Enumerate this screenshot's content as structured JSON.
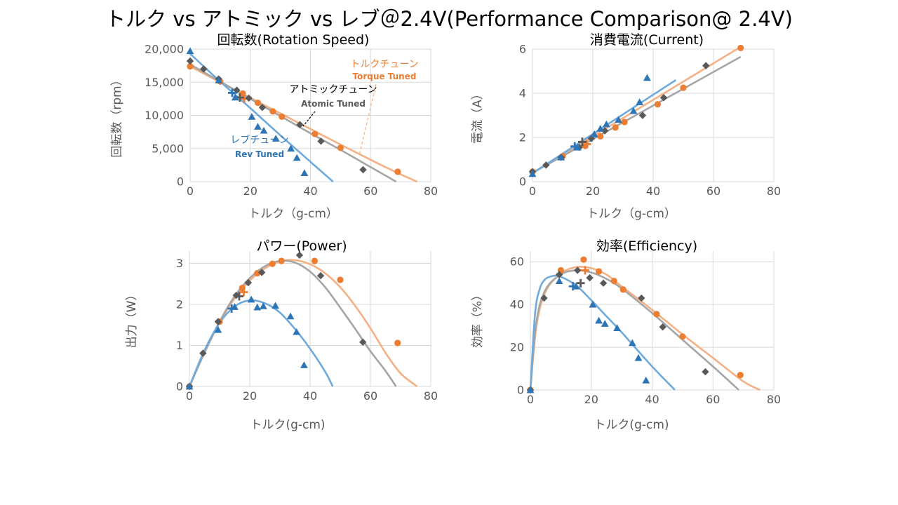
{
  "page": {
    "title": "トルク vs アトミック vs レブ＠2.4V(Performance Comparison@ 2.4V)"
  },
  "colors": {
    "torque": "#ED7D31",
    "torque_fit": "#F4B183",
    "atomic": "#595959",
    "atomic_fit": "#A6A6A6",
    "rev": "#2E75B6",
    "rev_fit": "#6FAADC",
    "grid": "#D9D9D9",
    "axis_text": "#595959"
  },
  "chart_data": [
    {
      "type": "scatter",
      "title": "回転数(Rotation Speed)",
      "xlabel": "トルク（g-cm）",
      "ylabel": "回転数（rpm）",
      "xlim": [
        0,
        80
      ],
      "ylim": [
        0,
        20000
      ],
      "xticks": [
        "0",
        "20",
        "40",
        "60",
        "80"
      ],
      "yticks": [
        "0",
        "5,000",
        "10,000",
        "15,000",
        "20,000"
      ],
      "grid": true,
      "annotations": [
        {
          "ja": "トルクチューン",
          "en": "Torque Tuned",
          "series": "torque"
        },
        {
          "ja": "アトミックチューン",
          "en": "Atomic Tuned",
          "series": "atomic"
        },
        {
          "ja": "レブチューン",
          "en": "Rev Tuned",
          "series": "rev"
        }
      ],
      "series": [
        {
          "key": "torque",
          "marker": "circle",
          "points": [
            [
              0,
              17400
            ],
            [
              10,
              15100
            ],
            [
              17.5,
              13300
            ],
            [
              22.5,
              11900
            ],
            [
              27.5,
              10600
            ],
            [
              30.5,
              9800
            ],
            [
              41.5,
              7200
            ],
            [
              50,
              5100
            ],
            [
              69,
              1500
            ]
          ],
          "op_point": [
            18,
            12500
          ],
          "fit": [
            [
              0,
              17400
            ],
            [
              10,
              15000
            ],
            [
              20,
              12650
            ],
            [
              30,
              10300
            ],
            [
              40,
              7950
            ],
            [
              50,
              5600
            ],
            [
              60,
              3300
            ],
            [
              70,
              1100
            ],
            [
              75.5,
              0
            ]
          ]
        },
        {
          "key": "atomic",
          "marker": "diamond",
          "points": [
            [
              0,
              18200
            ],
            [
              4.5,
              17000
            ],
            [
              9.5,
              15500
            ],
            [
              15.5,
              13800
            ],
            [
              19.5,
              12600
            ],
            [
              24,
              11200
            ],
            [
              36.5,
              8600
            ],
            [
              43.5,
              6100
            ],
            [
              57.5,
              1800
            ]
          ],
          "op_point": [
            16.5,
            12700
          ],
          "fit": [
            [
              0,
              17700
            ],
            [
              10,
              15100
            ],
            [
              20,
              12500
            ],
            [
              30,
              9900
            ],
            [
              40,
              7300
            ],
            [
              50,
              4800
            ],
            [
              60,
              2200
            ],
            [
              68.5,
              0
            ]
          ]
        },
        {
          "key": "rev",
          "marker": "triangle",
          "points": [
            [
              0,
              19700
            ],
            [
              9.5,
              15300
            ],
            [
              15,
              12700
            ],
            [
              20.5,
              9800
            ],
            [
              22.5,
              8300
            ],
            [
              24.5,
              7700
            ],
            [
              28.5,
              6500
            ],
            [
              33.5,
              5000
            ],
            [
              35.5,
              3600
            ],
            [
              38,
              1300
            ]
          ],
          "op_point": [
            14,
            13400
          ],
          "fit": [
            [
              0,
              19300
            ],
            [
              10,
              15100
            ],
            [
              20,
              11100
            ],
            [
              30,
              7000
            ],
            [
              40,
              3000
            ],
            [
              47.5,
              0
            ]
          ]
        }
      ]
    },
    {
      "type": "scatter",
      "title": "消費電流(Current)",
      "xlabel": "トルク（g-cm）",
      "ylabel": "電流（A）",
      "xlim": [
        0,
        80
      ],
      "ylim": [
        0,
        6
      ],
      "xticks": [
        "0",
        "20",
        "40",
        "60",
        "80"
      ],
      "yticks": [
        "0",
        "2",
        "4",
        "6"
      ],
      "grid": true,
      "series": [
        {
          "key": "torque",
          "marker": "circle",
          "points": [
            [
              0,
              0.45
            ],
            [
              10,
              1.15
            ],
            [
              17.5,
              1.62
            ],
            [
              22.5,
              2.05
            ],
            [
              27.5,
              2.45
            ],
            [
              30.5,
              2.7
            ],
            [
              41.5,
              3.5
            ],
            [
              50,
              4.25
            ],
            [
              69,
              6.05
            ]
          ],
          "op_point": [
            18,
            1.7
          ],
          "fit": [
            [
              0,
              0.4
            ],
            [
              69,
              6.1
            ]
          ]
        },
        {
          "key": "atomic",
          "marker": "diamond",
          "points": [
            [
              0,
              0.45
            ],
            [
              4.5,
              0.75
            ],
            [
              9.5,
              1.1
            ],
            [
              15.5,
              1.55
            ],
            [
              19.5,
              1.95
            ],
            [
              24,
              2.3
            ],
            [
              36.5,
              3.0
            ],
            [
              43.5,
              3.8
            ],
            [
              57.5,
              5.25
            ]
          ],
          "op_point": [
            16.5,
            1.8
          ],
          "fit": [
            [
              0,
              0.4
            ],
            [
              69,
              5.65
            ]
          ]
        },
        {
          "key": "rev",
          "marker": "triangle",
          "points": [
            [
              0,
              0.35
            ],
            [
              9.5,
              1.1
            ],
            [
              15,
              1.55
            ],
            [
              20.5,
              2.15
            ],
            [
              22.5,
              2.4
            ],
            [
              24.5,
              2.6
            ],
            [
              28.5,
              2.8
            ],
            [
              33.5,
              3.2
            ],
            [
              35.5,
              3.6
            ],
            [
              38,
              4.7
            ]
          ],
          "op_point": [
            14,
            1.6
          ],
          "fit": [
            [
              0,
              0.38
            ],
            [
              47.5,
              4.6
            ]
          ]
        }
      ]
    },
    {
      "type": "scatter",
      "title": "パワー(Power)",
      "xlabel": "トルク(g-cm)",
      "ylabel": "出力（W）",
      "xlim": [
        0,
        80
      ],
      "ylim": [
        0,
        3.3
      ],
      "xticks": [
        "0",
        "20",
        "40",
        "60",
        "80"
      ],
      "yticks": [
        "0",
        "1",
        "2",
        "3"
      ],
      "grid": true,
      "series": [
        {
          "key": "torque",
          "marker": "circle",
          "points": [
            [
              0,
              0
            ],
            [
              10,
              1.58
            ],
            [
              17.5,
              2.4
            ],
            [
              22.5,
              2.76
            ],
            [
              27.5,
              2.99
            ],
            [
              30.5,
              3.06
            ],
            [
              41.5,
              3.06
            ],
            [
              50,
              2.6
            ],
            [
              69,
              1.06
            ]
          ],
          "op_point": [
            18,
            2.3
          ],
          "fit": [
            [
              0,
              0
            ],
            [
              5,
              0.82
            ],
            [
              10,
              1.56
            ],
            [
              15,
              2.15
            ],
            [
              20,
              2.58
            ],
            [
              25,
              2.88
            ],
            [
              30,
              3.05
            ],
            [
              35,
              3.08
            ],
            [
              40,
              2.98
            ],
            [
              45,
              2.76
            ],
            [
              50,
              2.42
            ],
            [
              55,
              1.96
            ],
            [
              60,
              1.42
            ],
            [
              65,
              0.82
            ],
            [
              70,
              0.32
            ],
            [
              75.5,
              0
            ]
          ]
        },
        {
          "key": "atomic",
          "marker": "diamond",
          "points": [
            [
              0,
              0
            ],
            [
              4.5,
              0.81
            ],
            [
              9.5,
              1.58
            ],
            [
              15.5,
              2.22
            ],
            [
              19.5,
              2.53
            ],
            [
              24,
              2.78
            ],
            [
              36.5,
              3.2
            ],
            [
              43.5,
              2.7
            ],
            [
              57.5,
              1.08
            ]
          ],
          "op_point": [
            16.5,
            2.2
          ],
          "fit": [
            [
              0,
              0
            ],
            [
              5,
              0.83
            ],
            [
              10,
              1.58
            ],
            [
              15,
              2.2
            ],
            [
              20,
              2.64
            ],
            [
              25,
              2.93
            ],
            [
              30,
              3.06
            ],
            [
              35,
              3.02
            ],
            [
              40,
              2.8
            ],
            [
              45,
              2.42
            ],
            [
              50,
              1.92
            ],
            [
              55,
              1.4
            ],
            [
              60,
              0.86
            ],
            [
              65,
              0.38
            ],
            [
              68.5,
              0
            ]
          ]
        },
        {
          "key": "rev",
          "marker": "triangle",
          "points": [
            [
              0,
              0
            ],
            [
              9.5,
              1.38
            ],
            [
              15,
              1.94
            ],
            [
              20.5,
              2.12
            ],
            [
              22.5,
              1.93
            ],
            [
              24.5,
              1.96
            ],
            [
              28.5,
              1.97
            ],
            [
              33.5,
              1.71
            ],
            [
              35.5,
              1.33
            ],
            [
              38,
              0.52
            ]
          ],
          "op_point": [
            14,
            1.9
          ],
          "fit": [
            [
              0,
              0
            ],
            [
              5,
              0.88
            ],
            [
              10,
              1.55
            ],
            [
              15,
              1.95
            ],
            [
              20,
              2.1
            ],
            [
              25,
              2.03
            ],
            [
              30,
              1.8
            ],
            [
              35,
              1.4
            ],
            [
              40,
              0.92
            ],
            [
              45,
              0.36
            ],
            [
              47.5,
              0
            ]
          ]
        }
      ]
    },
    {
      "type": "scatter",
      "title": "効率(Efficiency)",
      "xlabel": "トルク(g-cm)",
      "ylabel": "効率（%）",
      "xlim": [
        0,
        80
      ],
      "ylim": [
        0,
        65
      ],
      "xticks": [
        "0",
        "20",
        "40",
        "60",
        "80"
      ],
      "yticks": [
        "0",
        "20",
        "40",
        "60"
      ],
      "grid": true,
      "series": [
        {
          "key": "torque",
          "marker": "circle",
          "points": [
            [
              0,
              0
            ],
            [
              10,
              56
            ],
            [
              17.5,
              61
            ],
            [
              22.5,
              55.5
            ],
            [
              27.5,
              51
            ],
            [
              30.5,
              47
            ],
            [
              41.5,
              35.5
            ],
            [
              50,
              25
            ],
            [
              69,
              7
            ]
          ],
          "op_point": [
            18,
            56
          ],
          "fit": [
            [
              0,
              0
            ],
            [
              2,
              30
            ],
            [
              5,
              46
            ],
            [
              10,
              54.5
            ],
            [
              15,
              57.5
            ],
            [
              20,
              57
            ],
            [
              25,
              54
            ],
            [
              30,
              48.5
            ],
            [
              40,
              37.5
            ],
            [
              50,
              26
            ],
            [
              60,
              15
            ],
            [
              70,
              4
            ],
            [
              75.5,
              0
            ]
          ]
        },
        {
          "key": "atomic",
          "marker": "diamond",
          "points": [
            [
              0,
              0
            ],
            [
              4.5,
              43
            ],
            [
              9.5,
              54
            ],
            [
              15.5,
              56
            ],
            [
              19.5,
              52.5
            ],
            [
              24,
              50
            ],
            [
              36.5,
              43
            ],
            [
              43.5,
              29.5
            ],
            [
              57.5,
              8.5
            ]
          ],
          "op_point": [
            16.5,
            50
          ],
          "fit": [
            [
              0,
              0
            ],
            [
              2,
              32
            ],
            [
              5,
              47
            ],
            [
              10,
              54
            ],
            [
              15,
              56
            ],
            [
              20,
              55
            ],
            [
              25,
              52
            ],
            [
              30,
              47.5
            ],
            [
              40,
              36
            ],
            [
              50,
              23.5
            ],
            [
              60,
              11
            ],
            [
              68.5,
              0
            ]
          ]
        },
        {
          "key": "rev",
          "marker": "triangle",
          "points": [
            [
              0,
              0
            ],
            [
              9.5,
              51
            ],
            [
              15,
              48.5
            ],
            [
              20.5,
              40
            ],
            [
              22.5,
              32.5
            ],
            [
              24.5,
              31
            ],
            [
              28.5,
              29
            ],
            [
              33.5,
              22
            ],
            [
              35.5,
              15
            ],
            [
              38,
              4.5
            ]
          ],
          "op_point": [
            14,
            48.5
          ],
          "fit": [
            [
              0,
              0
            ],
            [
              1.5,
              35
            ],
            [
              3,
              47
            ],
            [
              5,
              52
            ],
            [
              8,
              53.5
            ],
            [
              10,
              53
            ],
            [
              15,
              49
            ],
            [
              20,
              42
            ],
            [
              25,
              34.5
            ],
            [
              30,
              27
            ],
            [
              40,
              11
            ],
            [
              47.5,
              0
            ]
          ]
        }
      ]
    }
  ]
}
